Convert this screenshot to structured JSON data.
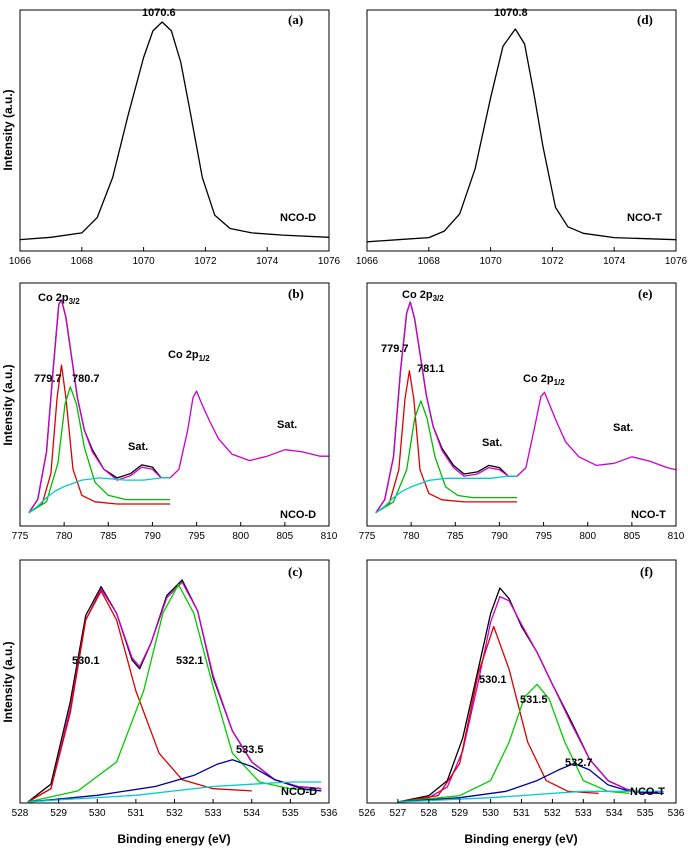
{
  "figure": {
    "xlabel": "Binding energy (eV)",
    "ylabel": "Intensity (a.u.)"
  },
  "chart_data": [
    {
      "id": "a",
      "type": "line",
      "panel_label": "(a)",
      "sample_label": "NCO-D",
      "xlim": [
        1066,
        1076
      ],
      "xticks": [
        "1066",
        "1068",
        "1070",
        "1072",
        "1074",
        "1076"
      ],
      "ylabel": "Intensity (a.u.)",
      "annotations": [
        "1070.6"
      ],
      "series": [
        {
          "color": "#000000",
          "x": [
            1066,
            1067,
            1068,
            1068.5,
            1069,
            1069.5,
            1070,
            1070.3,
            1070.6,
            1070.9,
            1071.2,
            1071.5,
            1071.9,
            1072.3,
            1072.8,
            1073.5,
            1074.5,
            1076
          ],
          "y": [
            0.02,
            0.03,
            0.05,
            0.12,
            0.3,
            0.58,
            0.84,
            0.96,
            1.0,
            0.96,
            0.82,
            0.6,
            0.3,
            0.13,
            0.07,
            0.05,
            0.04,
            0.03
          ]
        }
      ]
    },
    {
      "id": "d",
      "type": "line",
      "panel_label": "(d)",
      "sample_label": "NCO-T",
      "xlim": [
        1066,
        1076
      ],
      "xticks": [
        "1066",
        "1068",
        "1070",
        "1072",
        "1074",
        "1076"
      ],
      "annotations": [
        "1070.8"
      ],
      "series": [
        {
          "color": "#000000",
          "x": [
            1066,
            1067,
            1068,
            1068.5,
            1069,
            1069.5,
            1070,
            1070.4,
            1070.8,
            1071.1,
            1071.4,
            1071.7,
            1072.1,
            1072.5,
            1073,
            1074,
            1076
          ],
          "y": [
            0.01,
            0.02,
            0.03,
            0.06,
            0.14,
            0.35,
            0.68,
            0.92,
            1.0,
            0.93,
            0.7,
            0.45,
            0.17,
            0.08,
            0.05,
            0.03,
            0.02
          ]
        }
      ]
    },
    {
      "id": "b",
      "type": "line",
      "panel_label": "(b)",
      "sample_label": "NCO-D",
      "xlim": [
        775,
        810
      ],
      "xticks": [
        "775",
        "780",
        "785",
        "790",
        "795",
        "800",
        "805",
        "810"
      ],
      "ylabel": "Intensity (a.u.)",
      "annotations": [
        "779.7",
        "780.7",
        "Sat.",
        "Sat."
      ],
      "co_labels": [
        "Co 2p",
        "3/2",
        "Co 2p",
        "1/2"
      ],
      "series": [
        {
          "color": "#000000",
          "x": [
            776,
            777,
            778,
            778.8,
            779.4,
            779.7,
            780.2,
            780.8,
            781.5,
            782.3,
            783.2,
            784.5,
            786,
            787.5,
            788.8,
            790,
            791,
            792
          ],
          "y": [
            0.02,
            0.08,
            0.3,
            0.7,
            0.98,
            1.0,
            0.92,
            0.75,
            0.55,
            0.4,
            0.31,
            0.22,
            0.18,
            0.2,
            0.24,
            0.23,
            0.18,
            0.18
          ]
        },
        {
          "color": "#cc00cc",
          "x": [
            776,
            777,
            778,
            778.8,
            779.4,
            779.7,
            780.2,
            780.8,
            781.5,
            782.3,
            783.2,
            784.5,
            786,
            787.5,
            788.8,
            790,
            791,
            792,
            793,
            794,
            794.6,
            795,
            795.6,
            796.5,
            797.5,
            799,
            801,
            803,
            805,
            807,
            809,
            810
          ],
          "y": [
            0.02,
            0.08,
            0.3,
            0.7,
            0.98,
            1.0,
            0.92,
            0.75,
            0.55,
            0.4,
            0.3,
            0.22,
            0.17,
            0.19,
            0.23,
            0.22,
            0.18,
            0.18,
            0.22,
            0.4,
            0.55,
            0.58,
            0.52,
            0.44,
            0.36,
            0.29,
            0.26,
            0.28,
            0.31,
            0.3,
            0.28,
            0.28
          ]
        },
        {
          "color": "#dd0000",
          "x": [
            776,
            777.5,
            778.5,
            779.2,
            779.7,
            780.2,
            781,
            782,
            783.5,
            786,
            792
          ],
          "y": [
            0.02,
            0.06,
            0.2,
            0.55,
            0.7,
            0.55,
            0.22,
            0.1,
            0.07,
            0.06,
            0.06
          ]
        },
        {
          "color": "#00bb00",
          "x": [
            776,
            778,
            779.3,
            780.1,
            780.7,
            781.4,
            782.3,
            783.5,
            785,
            787,
            792
          ],
          "y": [
            0.02,
            0.07,
            0.25,
            0.52,
            0.6,
            0.52,
            0.32,
            0.16,
            0.1,
            0.08,
            0.08
          ]
        },
        {
          "color": "#00cccc",
          "x": [
            776,
            777,
            778,
            779,
            780,
            782,
            784,
            787,
            789,
            791,
            792
          ],
          "y": [
            0.02,
            0.05,
            0.09,
            0.12,
            0.14,
            0.17,
            0.18,
            0.17,
            0.17,
            0.18,
            0.18
          ]
        }
      ]
    },
    {
      "id": "e",
      "type": "line",
      "panel_label": "(e)",
      "sample_label": "NCO-T",
      "xlim": [
        775,
        810
      ],
      "xticks": [
        "775",
        "780",
        "785",
        "790",
        "795",
        "800",
        "805",
        "810"
      ],
      "annotations": [
        "779.7",
        "781.1",
        "Sat.",
        "Sat."
      ],
      "co_labels": [
        "Co 2p",
        "3/2",
        "Co 2p",
        "1/2"
      ],
      "series": [
        {
          "color": "#000000",
          "x": [
            776,
            777,
            778,
            778.8,
            779.5,
            779.9,
            780.4,
            781,
            781.7,
            782.5,
            783.5,
            784.8,
            786,
            787.5,
            788.8,
            790,
            791,
            792
          ],
          "y": [
            0.02,
            0.08,
            0.28,
            0.68,
            0.95,
            1.0,
            0.92,
            0.76,
            0.57,
            0.42,
            0.32,
            0.24,
            0.2,
            0.21,
            0.24,
            0.23,
            0.19,
            0.19
          ]
        },
        {
          "color": "#cc00cc",
          "x": [
            776,
            777,
            778,
            778.8,
            779.5,
            779.9,
            780.4,
            781,
            781.7,
            782.5,
            783.5,
            784.8,
            786,
            787.5,
            788.8,
            790,
            791,
            792,
            793,
            794,
            794.7,
            795.1,
            795.7,
            796.5,
            797.5,
            799,
            801,
            803,
            805,
            807,
            809,
            810
          ],
          "y": [
            0.02,
            0.08,
            0.28,
            0.68,
            0.95,
            1.0,
            0.92,
            0.76,
            0.57,
            0.42,
            0.31,
            0.23,
            0.19,
            0.2,
            0.23,
            0.22,
            0.19,
            0.19,
            0.23,
            0.42,
            0.56,
            0.58,
            0.52,
            0.44,
            0.35,
            0.28,
            0.24,
            0.25,
            0.28,
            0.26,
            0.23,
            0.22
          ]
        },
        {
          "color": "#dd0000",
          "x": [
            776,
            777.5,
            778.6,
            779.3,
            779.8,
            780.3,
            781,
            782,
            783.5,
            786,
            792
          ],
          "y": [
            0.02,
            0.06,
            0.22,
            0.55,
            0.68,
            0.55,
            0.22,
            0.11,
            0.08,
            0.07,
            0.07
          ]
        },
        {
          "color": "#00bb00",
          "x": [
            776,
            778,
            779.5,
            780.4,
            781.1,
            781.8,
            782.7,
            783.9,
            785.3,
            787,
            792
          ],
          "y": [
            0.02,
            0.07,
            0.22,
            0.46,
            0.54,
            0.46,
            0.28,
            0.14,
            0.1,
            0.09,
            0.09
          ]
        },
        {
          "color": "#00cccc",
          "x": [
            776,
            777,
            778,
            779,
            780,
            782,
            784,
            787,
            789,
            791,
            792
          ],
          "y": [
            0.02,
            0.05,
            0.09,
            0.12,
            0.14,
            0.17,
            0.18,
            0.18,
            0.18,
            0.19,
            0.19
          ]
        }
      ]
    },
    {
      "id": "c",
      "type": "line",
      "panel_label": "(c)",
      "sample_label": "NCO-D",
      "xlim": [
        528,
        536
      ],
      "xticks": [
        "528",
        "529",
        "530",
        "531",
        "532",
        "533",
        "534",
        "535",
        "536"
      ],
      "xlabel": "Binding energy (eV)",
      "ylabel": "Intensity (a.u.)",
      "annotations": [
        "530.1",
        "532.1",
        "533.5"
      ],
      "series": [
        {
          "color": "#000000",
          "x": [
            528.2,
            528.8,
            529.3,
            529.7,
            530.1,
            530.5,
            530.9,
            531.1,
            531.4,
            531.8,
            532.2,
            532.6,
            533.0,
            533.5,
            534.0,
            534.6,
            535.2,
            535.8
          ],
          "y": [
            0.0,
            0.08,
            0.45,
            0.84,
            0.97,
            0.85,
            0.64,
            0.6,
            0.72,
            0.93,
            1.0,
            0.86,
            0.56,
            0.32,
            0.18,
            0.1,
            0.07,
            0.06
          ]
        },
        {
          "color": "#cc00cc",
          "x": [
            528.2,
            528.8,
            529.3,
            529.7,
            530.1,
            530.5,
            530.9,
            531.1,
            531.4,
            531.8,
            532.2,
            532.6,
            533.0,
            533.5,
            534.0,
            534.6,
            535.2,
            535.8
          ],
          "y": [
            0.0,
            0.06,
            0.42,
            0.82,
            0.96,
            0.85,
            0.65,
            0.61,
            0.72,
            0.92,
            0.99,
            0.86,
            0.57,
            0.32,
            0.18,
            0.1,
            0.07,
            0.06
          ]
        },
        {
          "color": "#dd0000",
          "x": [
            528.2,
            528.8,
            529.3,
            529.7,
            530.1,
            530.5,
            531.0,
            531.6,
            532.2,
            533.0,
            534.0
          ],
          "y": [
            0.0,
            0.06,
            0.4,
            0.82,
            0.95,
            0.82,
            0.5,
            0.22,
            0.1,
            0.06,
            0.05
          ]
        },
        {
          "color": "#00cc00",
          "x": [
            528.2,
            529.5,
            530.5,
            531.2,
            531.7,
            532.1,
            532.5,
            533.0,
            533.5,
            534.2,
            535.0,
            535.8
          ],
          "y": [
            0.0,
            0.05,
            0.18,
            0.5,
            0.85,
            0.98,
            0.85,
            0.52,
            0.22,
            0.09,
            0.06,
            0.05
          ]
        },
        {
          "color": "#000099",
          "x": [
            528.2,
            530,
            531.5,
            532.5,
            533.1,
            533.5,
            534.0,
            534.6,
            535.3,
            535.8
          ],
          "y": [
            0.0,
            0.03,
            0.07,
            0.12,
            0.17,
            0.19,
            0.16,
            0.1,
            0.06,
            0.05
          ]
        },
        {
          "color": "#00cccc",
          "x": [
            528.2,
            529,
            530,
            531,
            532,
            533,
            534,
            535,
            535.8
          ],
          "y": [
            0.0,
            0.01,
            0.02,
            0.03,
            0.05,
            0.07,
            0.08,
            0.09,
            0.09
          ]
        }
      ]
    },
    {
      "id": "f",
      "type": "line",
      "panel_label": "(f)",
      "sample_label": "NCO-T",
      "xlim": [
        526,
        536
      ],
      "xticks": [
        "526",
        "527",
        "528",
        "529",
        "530",
        "531",
        "532",
        "533",
        "534",
        "535",
        "536"
      ],
      "xlabel": "Binding energy (eV)",
      "annotations": [
        "530.1",
        "531.5",
        "532.7"
      ],
      "series": [
        {
          "color": "#000000",
          "x": [
            527,
            528,
            528.6,
            529.1,
            529.6,
            530.0,
            530.3,
            530.6,
            531.0,
            531.5,
            532.0,
            532.6,
            533.2,
            533.8,
            534.4,
            535.0,
            535.6
          ],
          "y": [
            0.0,
            0.03,
            0.1,
            0.3,
            0.62,
            0.88,
            1.0,
            0.95,
            0.82,
            0.7,
            0.55,
            0.38,
            0.2,
            0.1,
            0.06,
            0.04,
            0.04
          ]
        },
        {
          "color": "#cc00cc",
          "x": [
            527,
            528,
            528.6,
            529.1,
            529.6,
            530.0,
            530.3,
            530.6,
            531.0,
            531.5,
            532.0,
            532.6,
            533.2,
            533.8,
            534.4,
            535.0,
            535.6
          ],
          "y": [
            0.0,
            0.02,
            0.07,
            0.24,
            0.56,
            0.84,
            0.96,
            0.94,
            0.83,
            0.7,
            0.55,
            0.37,
            0.2,
            0.1,
            0.06,
            0.04,
            0.04
          ]
        },
        {
          "color": "#dd0000",
          "x": [
            527,
            528.3,
            529.0,
            529.6,
            530.1,
            530.6,
            531.2,
            531.8,
            532.5,
            533.5
          ],
          "y": [
            0.0,
            0.03,
            0.18,
            0.6,
            0.82,
            0.62,
            0.28,
            0.1,
            0.05,
            0.04
          ]
        },
        {
          "color": "#00cc00",
          "x": [
            527,
            529,
            530,
            530.6,
            531.1,
            531.5,
            531.9,
            532.4,
            533.0,
            533.8,
            534.5
          ],
          "y": [
            0.0,
            0.03,
            0.1,
            0.28,
            0.49,
            0.55,
            0.48,
            0.28,
            0.1,
            0.05,
            0.04
          ]
        },
        {
          "color": "#000099",
          "x": [
            527,
            529,
            530.5,
            531.5,
            532.2,
            532.7,
            533.2,
            533.8,
            534.5,
            535.6
          ],
          "y": [
            0.0,
            0.02,
            0.05,
            0.1,
            0.15,
            0.18,
            0.15,
            0.08,
            0.05,
            0.04
          ]
        },
        {
          "color": "#00cccc",
          "x": [
            527,
            528.5,
            530,
            531,
            532,
            533,
            534,
            535,
            535.6
          ],
          "y": [
            0.0,
            0.01,
            0.02,
            0.03,
            0.04,
            0.05,
            0.05,
            0.05,
            0.05
          ]
        }
      ]
    }
  ]
}
